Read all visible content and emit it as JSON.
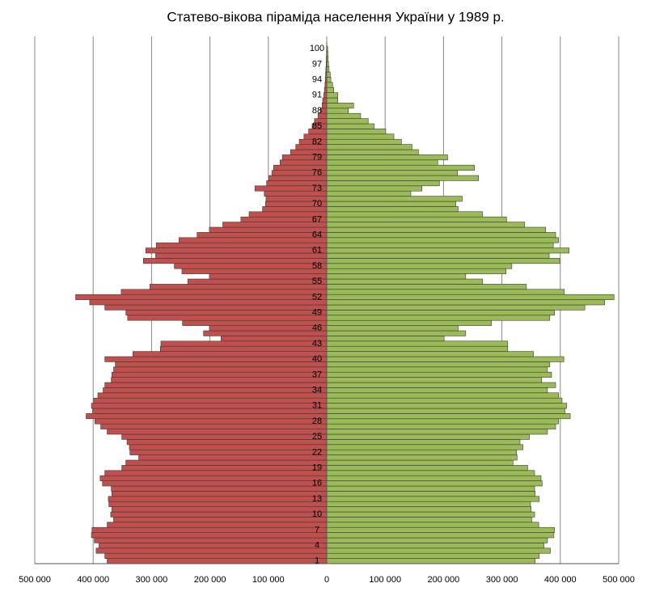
{
  "chart_data": {
    "type": "pyramid",
    "title": "Статево-вікова піраміда населення України у 1989 р.",
    "categories": [
      "1",
      null,
      null,
      "4",
      null,
      null,
      "7",
      null,
      null,
      "10",
      null,
      null,
      "13",
      null,
      null,
      "16",
      null,
      null,
      "19",
      null,
      null,
      "22",
      null,
      null,
      "25",
      null,
      null,
      "28",
      null,
      null,
      "31",
      null,
      null,
      "34",
      null,
      null,
      "37",
      null,
      null,
      "40",
      null,
      null,
      "43",
      null,
      null,
      "46",
      null,
      null,
      "49",
      null,
      null,
      "52",
      null,
      null,
      "55",
      null,
      null,
      "58",
      null,
      null,
      "61",
      null,
      null,
      "64",
      null,
      null,
      "67",
      null,
      null,
      "70",
      null,
      null,
      "73",
      null,
      null,
      "76",
      null,
      null,
      "79",
      null,
      null,
      "82",
      null,
      null,
      "85",
      null,
      null,
      "88",
      null,
      null,
      "91",
      null,
      null,
      "94",
      null,
      null,
      "97",
      null,
      null,
      "100"
    ],
    "series": [
      {
        "side": "left",
        "color": "#c0504d",
        "values": [
          376000,
          380000,
          395000,
          390000,
          398000,
          403000,
          402000,
          376000,
          365000,
          370000,
          368000,
          373000,
          374000,
          368000,
          369000,
          384000,
          388000,
          380000,
          351000,
          344000,
          322000,
          337000,
          338000,
          342000,
          351000,
          376000,
          387000,
          397000,
          412000,
          401000,
          403000,
          399000,
          392000,
          383000,
          380000,
          369000,
          368000,
          365000,
          362000,
          380000,
          332000,
          285000,
          284000,
          181000,
          211000,
          201000,
          247000,
          341000,
          344000,
          380000,
          406000,
          430000,
          352000,
          303000,
          238000,
          201000,
          248000,
          261000,
          314000,
          293000,
          310000,
          292000,
          253000,
          222000,
          201000,
          178000,
          147000,
          133000,
          110000,
          105000,
          104000,
          107000,
          123000,
          103000,
          99000,
          94000,
          91000,
          80000,
          76000,
          62000,
          53000,
          47000,
          39000,
          31000,
          25000,
          21000,
          15000,
          11000,
          8000,
          7000,
          5000,
          4000,
          3000,
          2500,
          2000,
          1500,
          1000,
          800,
          500,
          400
        ]
      },
      {
        "side": "right",
        "color": "#9bbb59",
        "values": [
          357000,
          364000,
          383000,
          372000,
          378000,
          389000,
          390000,
          363000,
          351000,
          356000,
          350000,
          349000,
          364000,
          357000,
          356000,
          369000,
          367000,
          356000,
          344000,
          319000,
          326000,
          325000,
          336000,
          331000,
          347000,
          378000,
          392000,
          397000,
          417000,
          408000,
          411000,
          403000,
          397000,
          378000,
          392000,
          368000,
          385000,
          378000,
          382000,
          406000,
          354000,
          310000,
          310000,
          201000,
          238000,
          225000,
          282000,
          382000,
          390000,
          442000,
          476000,
          492000,
          407000,
          342000,
          267000,
          238000,
          307000,
          317000,
          399000,
          381000,
          415000,
          388000,
          397000,
          392000,
          375000,
          339000,
          308000,
          267000,
          225000,
          221000,
          232000,
          144000,
          163000,
          193000,
          260000,
          224000,
          253000,
          190000,
          207000,
          157000,
          146000,
          128000,
          115000,
          101000,
          81000,
          71000,
          58000,
          37000,
          46000,
          19000,
          19000,
          12000,
          10000,
          7000,
          6000,
          4000,
          3000,
          2500,
          2000,
          1500
        ]
      }
    ],
    "xlim": [
      -500000,
      500000
    ],
    "xticks": [
      {
        "value": -500000,
        "label": "500 000"
      },
      {
        "value": -400000,
        "label": "400 000"
      },
      {
        "value": -300000,
        "label": "300 000"
      },
      {
        "value": -200000,
        "label": "200 000"
      },
      {
        "value": -100000,
        "label": "100 000"
      },
      0,
      {
        "value": 100000,
        "label": "100 000"
      },
      {
        "value": 200000,
        "label": "200 000"
      },
      {
        "value": 300000,
        "label": "300 000"
      },
      {
        "value": 400000,
        "label": "400 000"
      },
      {
        "value": 500000,
        "label": "500 000"
      }
    ],
    "grid": true
  }
}
